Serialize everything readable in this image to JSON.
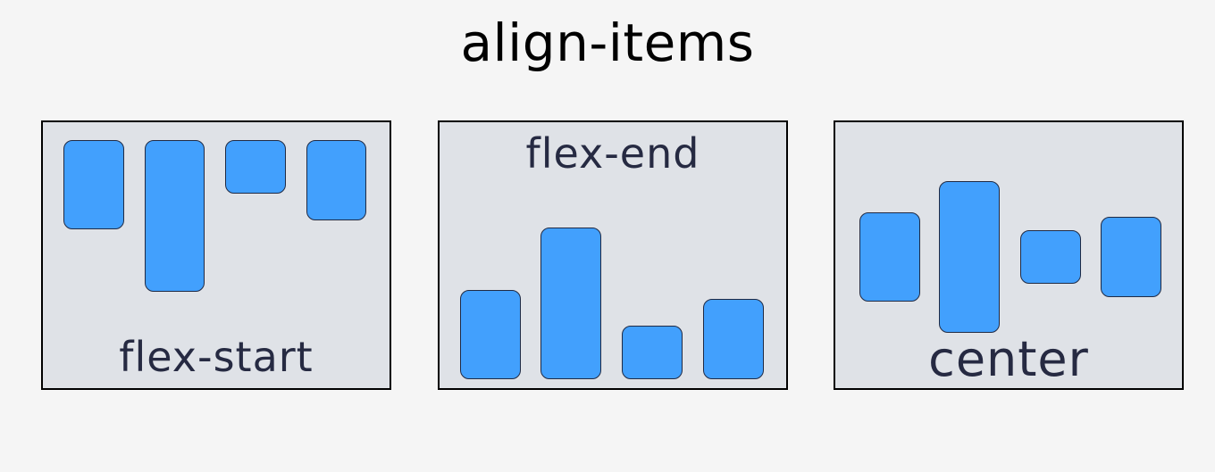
{
  "title": "align-items",
  "colors": {
    "background": "#f5f5f5",
    "panel": "#dfe2e7",
    "item": "#42a0fd",
    "label": "#262a42"
  },
  "panels": [
    {
      "label": "flex-start",
      "items": 4
    },
    {
      "label": "flex-end",
      "items": 4
    },
    {
      "label": "center",
      "items": 4
    }
  ]
}
